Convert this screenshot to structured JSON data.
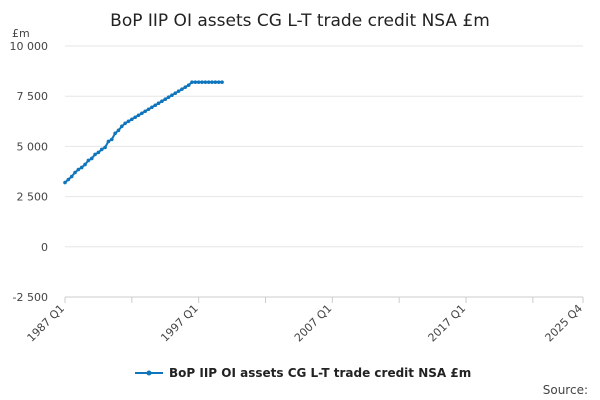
{
  "chart_data": {
    "type": "line",
    "title": "BoP IIP OI assets CG L-T trade credit NSA £m",
    "y_unit_label": "£m",
    "ylim": [
      -2500,
      10000
    ],
    "y_ticks": [
      -2500,
      0,
      2500,
      5000,
      7500,
      10000
    ],
    "y_tick_labels": [
      "-2 500",
      "0",
      "2 500",
      "5 000",
      "7 500",
      "10 000"
    ],
    "x_range_quarters": [
      "1987 Q1",
      "2025 Q4"
    ],
    "x_tick_labels": [
      "1987 Q1",
      "1997 Q1",
      "2007 Q1",
      "2017 Q1",
      "2025 Q4"
    ],
    "x_start": "1987 Q1",
    "grid": true,
    "legend_position": "bottom",
    "series": [
      {
        "name": "BoP IIP OI assets CG L-T trade credit NSA £m",
        "color": "#0f75bc",
        "values": [
          3200,
          3350,
          3500,
          3700,
          3850,
          3950,
          4100,
          4300,
          4400,
          4600,
          4700,
          4850,
          4950,
          5250,
          5350,
          5650,
          5800,
          6000,
          6150,
          6250,
          6350,
          6450,
          6550,
          6650,
          6750,
          6850,
          6950,
          7050,
          7150,
          7250,
          7350,
          7450,
          7550,
          7650,
          7750,
          7850,
          7950,
          8050,
          8200,
          8200,
          8200,
          8200,
          8200,
          8200,
          8200,
          8200,
          8200,
          8200
        ]
      }
    ]
  },
  "source_label": "Source:"
}
